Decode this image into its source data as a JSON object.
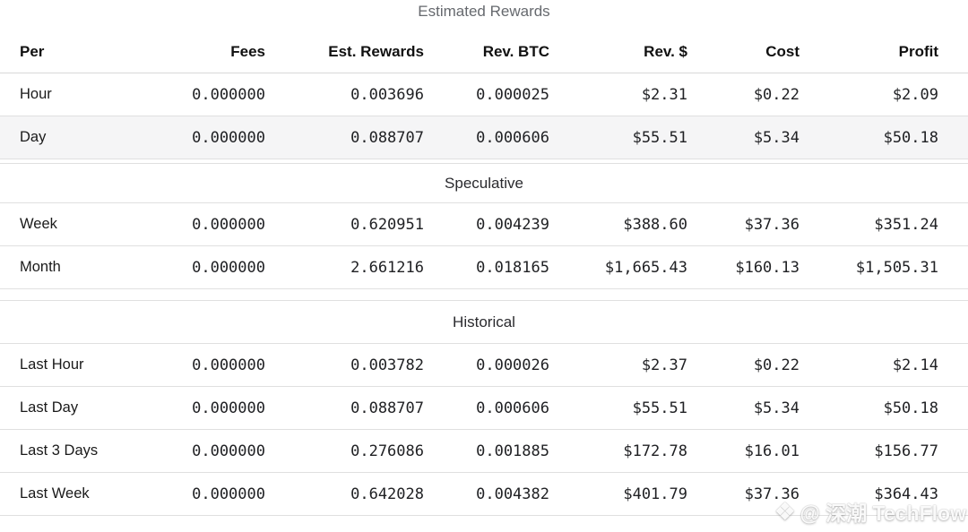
{
  "title": "Estimated Rewards",
  "table": {
    "columns": [
      "Per",
      "Fees",
      "Est. Rewards",
      "Rev. BTC",
      "Rev. $",
      "Cost",
      "Profit"
    ],
    "sections": [
      {
        "header": null,
        "rows": [
          {
            "label": "Hour",
            "values": [
              "0.000000",
              "0.003696",
              "0.000025",
              "$2.31",
              "$0.22",
              "$2.09"
            ],
            "highlight": false
          },
          {
            "label": "Day",
            "values": [
              "0.000000",
              "0.088707",
              "0.000606",
              "$55.51",
              "$5.34",
              "$50.18"
            ],
            "highlight": true
          }
        ]
      },
      {
        "header": "Speculative",
        "rows": [
          {
            "label": "Week",
            "values": [
              "0.000000",
              "0.620951",
              "0.004239",
              "$388.60",
              "$37.36",
              "$351.24"
            ],
            "highlight": false
          },
          {
            "label": "Month",
            "values": [
              "0.000000",
              "2.661216",
              "0.018165",
              "$1,665.43",
              "$160.13",
              "$1,505.31"
            ],
            "highlight": false
          }
        ]
      },
      {
        "header": "Historical",
        "rows": [
          {
            "label": "Last Hour",
            "values": [
              "0.000000",
              "0.003782",
              "0.000026",
              "$2.37",
              "$0.22",
              "$2.14"
            ],
            "highlight": false
          },
          {
            "label": "Last Day",
            "values": [
              "0.000000",
              "0.088707",
              "0.000606",
              "$55.51",
              "$5.34",
              "$50.18"
            ],
            "highlight": false
          },
          {
            "label": "Last 3 Days",
            "values": [
              "0.000000",
              "0.276086",
              "0.001885",
              "$172.78",
              "$16.01",
              "$156.77"
            ],
            "highlight": false
          },
          {
            "label": "Last Week",
            "values": [
              "0.000000",
              "0.642028",
              "0.004382",
              "$401.79",
              "$37.36",
              "$364.43"
            ],
            "highlight": false
          }
        ]
      }
    ]
  },
  "watermark": {
    "icon": "diamond-logo",
    "text": "@ 深潮 TechFlow"
  },
  "colors": {
    "highlight_row_bg": "#f5f5f6",
    "row_border": "#e0e0e0",
    "header_border": "#d8d8d8",
    "title_text": "#66696e",
    "body_text": "#202124"
  }
}
